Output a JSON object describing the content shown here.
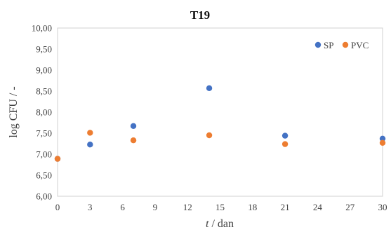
{
  "chart_data": {
    "type": "scatter",
    "title": "T19",
    "xlabel_italic": "t",
    "xlabel_rest": " / dan",
    "ylabel": "log CFU / -",
    "xlim": [
      0,
      30
    ],
    "ylim": [
      6.0,
      10.0
    ],
    "x_ticks": [
      0,
      3,
      6,
      9,
      12,
      15,
      18,
      21,
      24,
      27,
      30
    ],
    "x_tick_labels": [
      "0",
      "3",
      "6",
      "9",
      "12",
      "15",
      "18",
      "21",
      "24",
      "27",
      "30"
    ],
    "y_ticks": [
      6.0,
      6.5,
      7.0,
      7.5,
      8.0,
      8.5,
      9.0,
      9.5,
      10.0
    ],
    "y_tick_labels": [
      "6,00",
      "6,50",
      "7,00",
      "7,50",
      "8,00",
      "8,50",
      "9,00",
      "9,50",
      "10,00"
    ],
    "grid": false,
    "legend_position": "top-right",
    "series": [
      {
        "name": "SP",
        "color": "#4472C4",
        "x": [
          0,
          3,
          7,
          14,
          21,
          30
        ],
        "y": [
          6.89,
          7.23,
          7.67,
          8.57,
          7.44,
          7.37
        ]
      },
      {
        "name": "PVC",
        "color": "#ED7D31",
        "x": [
          0,
          3,
          7,
          14,
          21,
          30
        ],
        "y": [
          6.89,
          7.51,
          7.33,
          7.45,
          7.24,
          7.27
        ]
      }
    ]
  }
}
